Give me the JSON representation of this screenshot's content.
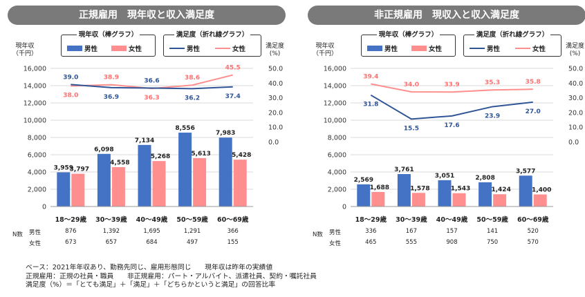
{
  "colors": {
    "male": "#4472c4",
    "female": "#ff8e8e",
    "male_line": "#2f5597",
    "female_line": "#ff8e8e",
    "title_bg": "#7a7a7a"
  },
  "legend": {
    "bar_group_title": "現年収（棒グラフ）",
    "line_group_title": "満足度（折れ線グラフ）",
    "male": "男性",
    "female": "女性"
  },
  "axis": {
    "left_unit": [
      "現年収",
      "（千円）"
    ],
    "right_unit": [
      "満足度",
      "(%)"
    ],
    "left_ticks": [
      "0",
      "2,000",
      "4,000",
      "6,000",
      "8,000",
      "10,000",
      "12,000",
      "14,000",
      "16,000"
    ],
    "right_ticks": [
      "0.0",
      "10.0",
      "20.0",
      "30.0",
      "40.0",
      "50.0"
    ]
  },
  "n_table": {
    "label": "N数",
    "male_label": "男性",
    "female_label": "女性"
  },
  "chart_data": [
    {
      "type": "bar",
      "title": "正規雇用　現年収と収入満足度",
      "categories": [
        "18～29歳",
        "30～39歳",
        "40～49歳",
        "50～59歳",
        "60～69歳"
      ],
      "ylim": [
        0,
        16000
      ],
      "y2lim": [
        0,
        50
      ],
      "series": [
        {
          "name": "男性",
          "kind": "bar",
          "values": [
            3959,
            6098,
            7134,
            8556,
            7983
          ],
          "labels": [
            "3,959",
            "6,098",
            "7,134",
            "8,556",
            "7,983"
          ]
        },
        {
          "name": "女性",
          "kind": "bar",
          "values": [
            3797,
            4558,
            5268,
            5613,
            5428
          ],
          "labels": [
            "3,797",
            "4,558",
            "5,268",
            "5,613",
            "5,428"
          ]
        },
        {
          "name": "男性",
          "kind": "line",
          "values": [
            39.0,
            36.9,
            36.6,
            36.2,
            37.4
          ],
          "labels": [
            "39.0",
            "36.9",
            "36.6",
            "36.2",
            "37.4"
          ]
        },
        {
          "name": "女性",
          "kind": "line",
          "values": [
            38.0,
            38.9,
            36.3,
            38.6,
            45.5
          ],
          "labels": [
            "38.0",
            "38.9",
            "36.3",
            "38.6",
            "45.5"
          ]
        }
      ],
      "n": {
        "male": [
          "876",
          "1,392",
          "1,695",
          "1,291",
          "366"
        ],
        "female": [
          "673",
          "657",
          "684",
          "497",
          "155"
        ]
      }
    },
    {
      "type": "bar",
      "title": "非正規雇用　現収入と収入満足度",
      "categories": [
        "18～29歳",
        "30～39歳",
        "40～49歳",
        "50～59歳",
        "60～69歳"
      ],
      "ylim": [
        0,
        16000
      ],
      "y2lim": [
        0,
        50
      ],
      "series": [
        {
          "name": "男性",
          "kind": "bar",
          "values": [
            2569,
            3761,
            3051,
            2808,
            3577
          ],
          "labels": [
            "2,569",
            "3,761",
            "3,051",
            "2,808",
            "3,577"
          ]
        },
        {
          "name": "女性",
          "kind": "bar",
          "values": [
            1688,
            1578,
            1543,
            1424,
            1400
          ],
          "labels": [
            "1,688",
            "1,578",
            "1,543",
            "1,424",
            "1,400"
          ]
        },
        {
          "name": "男性",
          "kind": "line",
          "values": [
            31.8,
            15.5,
            17.6,
            23.9,
            27.0
          ],
          "labels": [
            "31.8",
            "15.5",
            "17.6",
            "23.9",
            "27.0"
          ]
        },
        {
          "name": "女性",
          "kind": "line",
          "values": [
            39.4,
            34.0,
            33.9,
            35.3,
            35.8
          ],
          "labels": [
            "39.4",
            "34.0",
            "33.9",
            "35.3",
            "35.8"
          ]
        }
      ],
      "n": {
        "male": [
          "336",
          "167",
          "157",
          "141",
          "520"
        ],
        "female": [
          "465",
          "555",
          "908",
          "750",
          "570"
        ]
      }
    }
  ],
  "footer": [
    "ベース：2021年年収あり、勤務先同じ、雇用形態同じ　　現年収は昨年の実績値",
    "正規雇用：正規の社員・職員　　非正規雇用：パート・アルバイト、派遣社員、契約・嘱託社員",
    "満足度（%）＝「とても満足」＋「満足」＋「どちらかというと満足」の回答比率"
  ]
}
